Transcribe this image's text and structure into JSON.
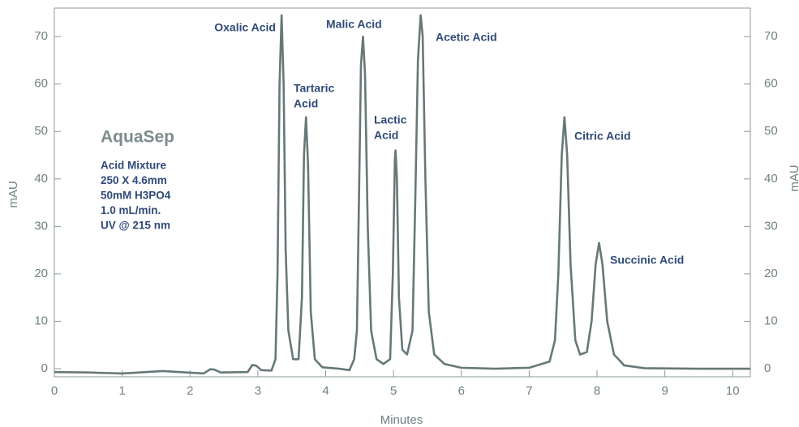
{
  "chart_data": {
    "type": "line",
    "xlabel": "Minutes",
    "ylabel": "mAU",
    "y2label": "mAU",
    "xlim": [
      0,
      10.26
    ],
    "ylim": [
      -1.7,
      76
    ],
    "y2lim": [
      -1.7,
      76
    ],
    "xticks": [
      0,
      1,
      2,
      3,
      4,
      5,
      6,
      7,
      8,
      9,
      10
    ],
    "yticks": [
      0,
      10,
      20,
      30,
      40,
      50,
      60,
      70
    ],
    "y2ticks": [
      0,
      10,
      20,
      30,
      40,
      50,
      60,
      70
    ],
    "x": [
      0,
      0.5,
      1.0,
      1.6,
      2.2,
      2.3,
      2.36,
      2.45,
      2.85,
      2.92,
      2.98,
      3.05,
      3.2,
      3.26,
      3.29,
      3.32,
      3.35,
      3.38,
      3.41,
      3.45,
      3.52,
      3.6,
      3.65,
      3.68,
      3.71,
      3.74,
      3.78,
      3.84,
      3.95,
      4.2,
      4.35,
      4.42,
      4.46,
      4.49,
      4.52,
      4.55,
      4.58,
      4.62,
      4.67,
      4.75,
      4.85,
      4.95,
      4.99,
      5.02,
      5.03,
      5.05,
      5.08,
      5.13,
      5.2,
      5.28,
      5.32,
      5.36,
      5.4,
      5.43,
      5.47,
      5.52,
      5.6,
      5.75,
      6.0,
      6.5,
      7.0,
      7.3,
      7.38,
      7.43,
      7.48,
      7.52,
      7.56,
      7.61,
      7.68,
      7.75,
      7.85,
      7.92,
      7.98,
      8.03,
      8.08,
      8.15,
      8.25,
      8.4,
      8.7,
      9.5,
      10.26
    ],
    "series": [
      {
        "color": "#667878",
        "values": [
          -0.7,
          -0.8,
          -1.0,
          -0.5,
          -1.0,
          -0.1,
          -0.2,
          -0.8,
          -0.7,
          0.8,
          0.6,
          -0.3,
          -0.4,
          2,
          20,
          60,
          74.5,
          60,
          25,
          8,
          2,
          2,
          15,
          45,
          53,
          43,
          12,
          2,
          0.3,
          0,
          -0.3,
          2,
          8,
          35,
          64,
          70,
          62,
          30,
          8,
          2,
          1,
          2,
          20,
          44,
          46,
          40,
          15,
          4,
          3,
          8,
          35,
          65,
          74.5,
          70,
          40,
          12,
          3,
          1,
          0.2,
          0,
          0.2,
          1.5,
          6,
          20,
          45,
          53,
          45,
          22,
          6,
          3,
          3.5,
          10,
          22,
          26.5,
          22,
          10,
          3,
          0.7,
          0.1,
          0,
          0
        ]
      }
    ],
    "annotations": [
      [
        "Oxalic Acid"
      ],
      [
        "Tartaric",
        "Acid"
      ],
      [
        "Malic Acid"
      ],
      [
        "Lactic",
        "Acid"
      ],
      [
        "Acetic Acid"
      ],
      [
        "Citric Acid"
      ],
      [
        "Succinic Acid"
      ]
    ],
    "info_title": "AquaSep",
    "info_lines": [
      "Acid Mixture",
      "250 X 4.6mm",
      "50mM H3PO4",
      "1.0 mL/min.",
      "UV @ 215 nm"
    ]
  }
}
